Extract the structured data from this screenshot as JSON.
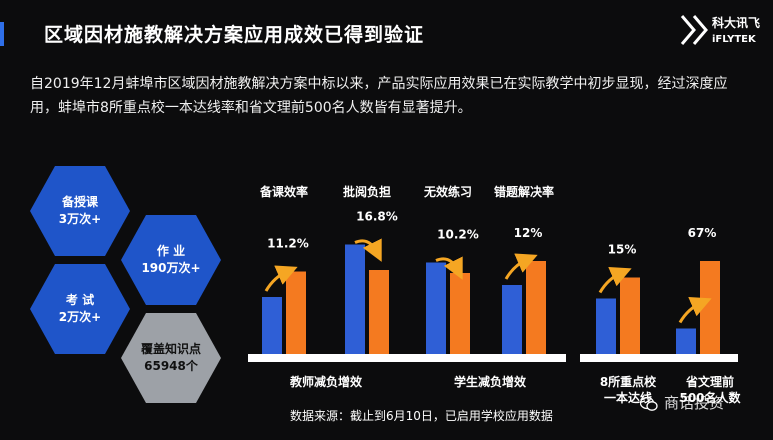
{
  "title": "区域因材施教解决方案应用成效已得到验证",
  "intro": "自2019年12月蚌埠市区域因材施教解决方案中标以来，产品实际应用效果已在实际教学中初步显现，经过深度应用，蚌埠市8所重点校一本达线率和省文理前500名人数皆有显著提升。",
  "logo": {
    "cn": "科大讯飞",
    "en": "iFLYTEK"
  },
  "hexes": [
    {
      "line1": "备授课",
      "line2": "3万次+"
    },
    {
      "line1": "作 业",
      "line2": "190万次+"
    },
    {
      "line1": "考 试",
      "line2": "2万次+"
    },
    {
      "line1": "覆盖知识点",
      "line2": "65948个"
    }
  ],
  "footer": "数据来源：截止到6月10日，已启用学校应用数据",
  "watermark": "商话投资",
  "chart_data": {
    "type": "bar",
    "series": [
      {
        "color": "#2f5fd6"
      },
      {
        "color": "#f47a20"
      }
    ],
    "groups": [
      {
        "label": "备课效率",
        "change": "11.2%",
        "direction": "up",
        "values": [
          0.38,
          0.55
        ]
      },
      {
        "label": "批阅负担",
        "change": "16.8%",
        "direction": "down",
        "values": [
          0.73,
          0.56
        ]
      },
      {
        "label": "无效练习",
        "change": "10.2%",
        "direction": "down",
        "values": [
          0.61,
          0.54
        ]
      },
      {
        "label": "错题解决率",
        "change": "12%",
        "direction": "up",
        "values": [
          0.46,
          0.62
        ]
      },
      {
        "label": "",
        "change": "15%",
        "direction": "up",
        "values": [
          0.37,
          0.51
        ]
      },
      {
        "label": "",
        "change": "67%",
        "direction": "up",
        "values": [
          0.17,
          0.62
        ]
      }
    ],
    "section_labels": [
      "教师减负增效",
      "学生减负增效",
      "8所重点校\n一本达线",
      "省文理前\n500名人数"
    ]
  }
}
